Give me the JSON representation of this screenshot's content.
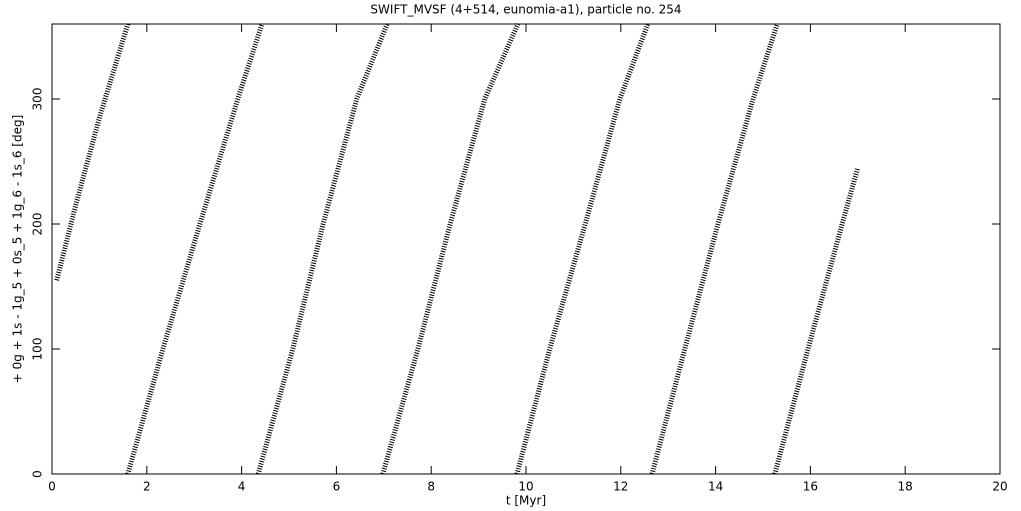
{
  "chart_data": {
    "type": "line",
    "title": "SWIFT_MVSF (4+514, eunomia-a1), particle no. 254",
    "x_label": "t [Myr]",
    "y_label": "+ 0g + 1s - 1g_5 + 0s_5 + 1g_6 - 1s_6 [deg]",
    "xlim": [
      0,
      20
    ],
    "xticks": [
      0,
      2,
      4,
      6,
      8,
      10,
      12,
      14,
      16,
      18,
      20
    ],
    "ylim": [
      0,
      360
    ],
    "yticks": [
      0,
      100,
      200,
      300
    ],
    "series": [
      {
        "color": "#000000",
        "x": [
          0.1,
          0.5,
          1.0,
          1.6
        ],
        "values": [
          155,
          215,
          285,
          360
        ]
      },
      {
        "color": "#000000",
        "x": [
          1.6,
          2.34,
          3.12,
          3.92,
          4.43
        ],
        "values": [
          0,
          100,
          200,
          300,
          360
        ]
      },
      {
        "color": "#000000",
        "x": [
          4.35,
          5.08,
          5.72,
          6.43,
          7.07
        ],
        "values": [
          0,
          100,
          200,
          300,
          360
        ]
      },
      {
        "color": "#000000",
        "x": [
          6.98,
          7.72,
          8.4,
          9.13,
          9.83
        ],
        "values": [
          0,
          100,
          200,
          300,
          360
        ]
      },
      {
        "color": "#000000",
        "x": [
          9.81,
          10.5,
          11.25,
          11.98,
          12.57
        ],
        "values": [
          0,
          100,
          200,
          300,
          360
        ]
      },
      {
        "color": "#000000",
        "x": [
          12.66,
          13.35,
          14.05,
          14.79,
          15.3
        ],
        "values": [
          0,
          100,
          200,
          300,
          360
        ]
      },
      {
        "color": "#000000",
        "x": [
          15.25,
          15.95,
          16.67,
          17.0
        ],
        "values": [
          0,
          100,
          200,
          245
        ]
      }
    ]
  }
}
